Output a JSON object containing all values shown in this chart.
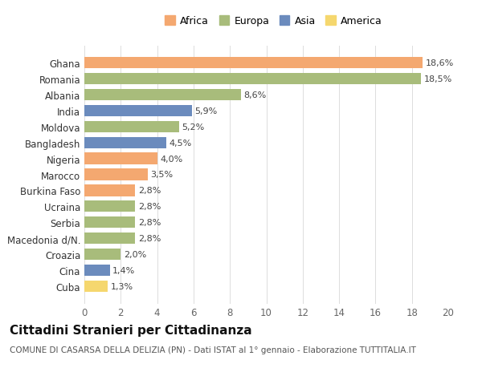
{
  "countries": [
    "Ghana",
    "Romania",
    "Albania",
    "India",
    "Moldova",
    "Bangladesh",
    "Nigeria",
    "Marocco",
    "Burkina Faso",
    "Ucraina",
    "Serbia",
    "Macedonia d/N.",
    "Croazia",
    "Cina",
    "Cuba"
  ],
  "values": [
    18.6,
    18.5,
    8.6,
    5.9,
    5.2,
    4.5,
    4.0,
    3.5,
    2.8,
    2.8,
    2.8,
    2.8,
    2.0,
    1.4,
    1.3
  ],
  "labels": [
    "18,6%",
    "18,5%",
    "8,6%",
    "5,9%",
    "5,2%",
    "4,5%",
    "4,0%",
    "3,5%",
    "2,8%",
    "2,8%",
    "2,8%",
    "2,8%",
    "2,0%",
    "1,4%",
    "1,3%"
  ],
  "continents": [
    "Africa",
    "Europa",
    "Europa",
    "Asia",
    "Europa",
    "Asia",
    "Africa",
    "Africa",
    "Africa",
    "Europa",
    "Europa",
    "Europa",
    "Europa",
    "Asia",
    "America"
  ],
  "continent_colors": {
    "Africa": "#F4A870",
    "Europa": "#A8BC7B",
    "Asia": "#6B8BBD",
    "America": "#F5D76E"
  },
  "legend_order": [
    "Africa",
    "Europa",
    "Asia",
    "America"
  ],
  "title": "Cittadini Stranieri per Cittadinanza",
  "subtitle": "COMUNE DI CASARSA DELLA DELIZIA (PN) - Dati ISTAT al 1° gennaio - Elaborazione TUTTITALIA.IT",
  "xlim": [
    0,
    20
  ],
  "xticks": [
    0,
    2,
    4,
    6,
    8,
    10,
    12,
    14,
    16,
    18,
    20
  ],
  "background_color": "#ffffff",
  "bar_height": 0.72,
  "label_fontsize": 8.0,
  "ytick_fontsize": 8.5,
  "xtick_fontsize": 8.5,
  "title_fontsize": 11,
  "subtitle_fontsize": 7.5,
  "legend_fontsize": 9.0
}
